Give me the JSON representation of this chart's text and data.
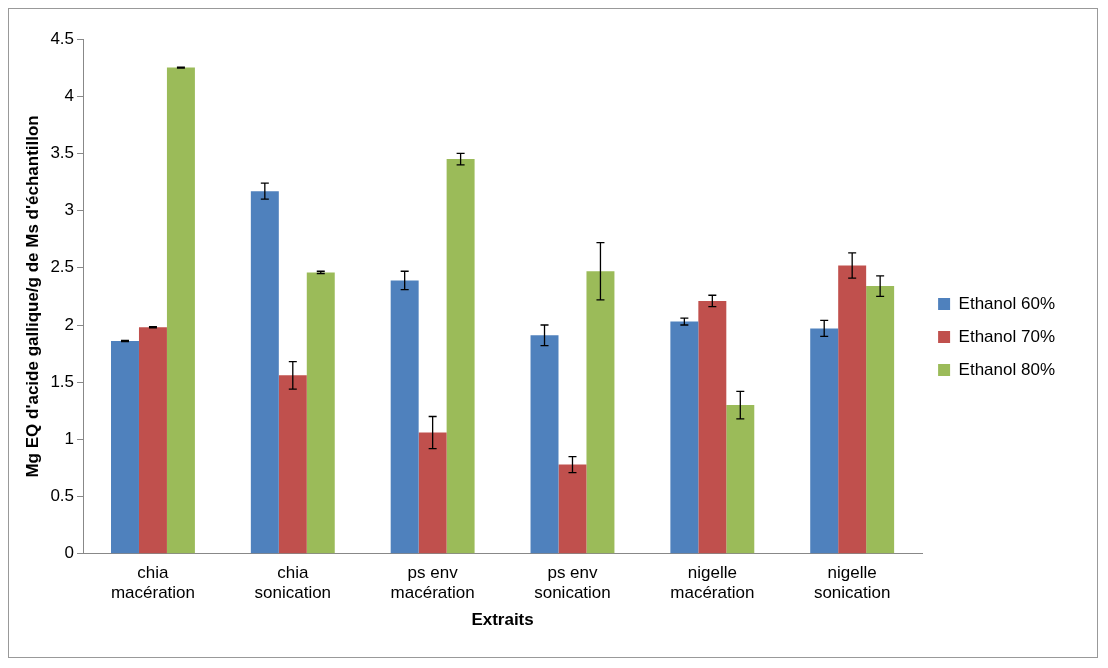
{
  "chart_data": {
    "type": "bar",
    "xlabel": "Extraits",
    "ylabel": "Mg EQ d'acide gallique/g de Ms d'échantillon",
    "categories": [
      "chia macération",
      "chia sonication",
      "ps env macération",
      "ps env sonication",
      "nigelle macération",
      "nigelle sonication"
    ],
    "series": [
      {
        "name": "Ethanol 60%",
        "color": "#4f81bd",
        "values": [
          1.86,
          3.17,
          2.39,
          1.91,
          2.03,
          1.97
        ],
        "errors": [
          0.005,
          0.07,
          0.08,
          0.09,
          0.03,
          0.07
        ]
      },
      {
        "name": "Ethanol 70%",
        "color": "#c0504d",
        "values": [
          1.98,
          1.56,
          1.06,
          0.78,
          2.21,
          2.52
        ],
        "errors": [
          0.005,
          0.12,
          0.14,
          0.07,
          0.05,
          0.11
        ]
      },
      {
        "name": "Ethanol 80%",
        "color": "#9bbb59",
        "values": [
          4.25,
          2.46,
          3.45,
          2.47,
          1.3,
          2.34
        ],
        "errors": [
          0.005,
          0.01,
          0.05,
          0.25,
          0.12,
          0.09
        ]
      }
    ],
    "ylim": [
      0,
      4.5
    ],
    "yticks": [
      0,
      0.5,
      1,
      1.5,
      2,
      2.5,
      3,
      3.5,
      4,
      4.5
    ],
    "grid": false,
    "legend": "right"
  }
}
